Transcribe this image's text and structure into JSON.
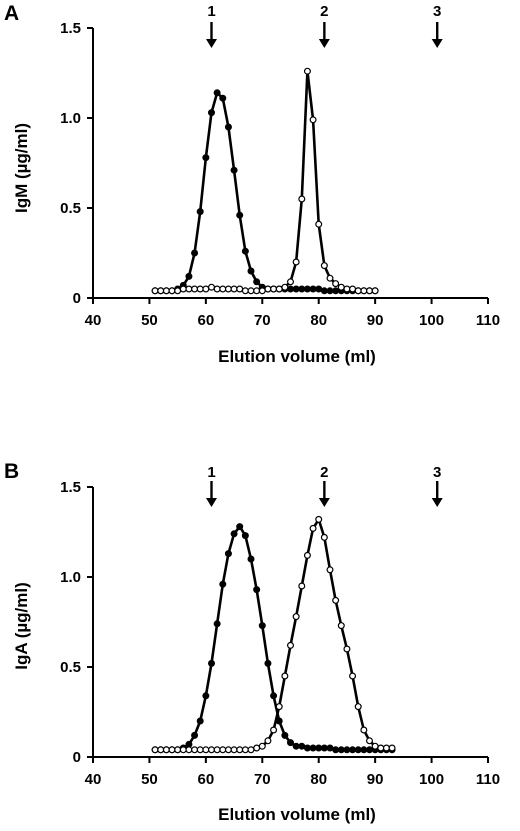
{
  "chart_data": [
    {
      "panel": "A",
      "type": "line",
      "xlabel": "Elution volume  (ml)",
      "ylabel": "IgM (µg/ml)",
      "xlim": [
        40,
        110
      ],
      "ylim": [
        0,
        1.5
      ],
      "xticks": [
        "40",
        "50",
        "60",
        "70",
        "80",
        "90",
        "100",
        "110"
      ],
      "yticks": [
        "0",
        "0.5",
        "1.0",
        "1.5"
      ],
      "markers": [
        {
          "label": "1",
          "x": 61
        },
        {
          "label": "2",
          "x": 81
        },
        {
          "label": "3",
          "x": 101
        }
      ],
      "series": [
        {
          "marker": "filled-circle",
          "x": [
            51,
            52,
            53,
            54,
            55,
            56,
            57,
            58,
            59,
            60,
            61,
            62,
            63,
            64,
            65,
            66,
            67,
            68,
            69,
            70,
            71,
            72,
            73,
            74,
            75,
            76,
            77,
            78,
            79,
            80,
            81,
            82,
            83,
            84,
            85,
            86,
            87,
            88,
            89,
            90
          ],
          "values": [
            0.04,
            0.04,
            0.04,
            0.04,
            0.05,
            0.07,
            0.12,
            0.25,
            0.48,
            0.78,
            1.03,
            1.14,
            1.11,
            0.95,
            0.71,
            0.46,
            0.26,
            0.15,
            0.09,
            0.06,
            0.05,
            0.05,
            0.05,
            0.05,
            0.05,
            0.05,
            0.05,
            0.05,
            0.05,
            0.05,
            0.04,
            0.04,
            0.04,
            0.04,
            0.04,
            0.04,
            0.04,
            0.04,
            0.04,
            0.04
          ]
        },
        {
          "marker": "open-circle",
          "x": [
            51,
            52,
            53,
            54,
            55,
            56,
            57,
            58,
            59,
            60,
            61,
            62,
            63,
            64,
            65,
            66,
            67,
            68,
            69,
            70,
            71,
            72,
            73,
            74,
            75,
            76,
            77,
            78,
            79,
            80,
            81,
            82,
            83,
            84,
            85,
            86,
            87,
            88,
            89,
            90
          ],
          "values": [
            0.04,
            0.04,
            0.04,
            0.04,
            0.04,
            0.05,
            0.05,
            0.05,
            0.05,
            0.05,
            0.06,
            0.05,
            0.05,
            0.05,
            0.05,
            0.05,
            0.04,
            0.04,
            0.04,
            0.04,
            0.05,
            0.05,
            0.05,
            0.06,
            0.09,
            0.2,
            0.55,
            1.26,
            0.99,
            0.41,
            0.18,
            0.11,
            0.08,
            0.06,
            0.05,
            0.05,
            0.04,
            0.04,
            0.04,
            0.04
          ]
        }
      ]
    },
    {
      "panel": "B",
      "type": "line",
      "xlabel": "Elution volume (ml)",
      "ylabel": "IgA (µg/ml)",
      "xlim": [
        40,
        110
      ],
      "ylim": [
        0,
        1.5
      ],
      "xticks": [
        "40",
        "50",
        "60",
        "70",
        "80",
        "90",
        "100",
        "110"
      ],
      "yticks": [
        "0",
        "0.5",
        "1.0",
        "1.5"
      ],
      "markers": [
        {
          "label": "1",
          "x": 61
        },
        {
          "label": "2",
          "x": 81
        },
        {
          "label": "3",
          "x": 101
        }
      ],
      "series": [
        {
          "marker": "filled-circle",
          "x": [
            51,
            52,
            53,
            54,
            55,
            56,
            57,
            58,
            59,
            60,
            61,
            62,
            63,
            64,
            65,
            66,
            67,
            68,
            69,
            70,
            71,
            72,
            73,
            74,
            75,
            76,
            77,
            78,
            79,
            80,
            81,
            82,
            83,
            84,
            85,
            86,
            87,
            88,
            89,
            90,
            91,
            92,
            93
          ],
          "values": [
            0.04,
            0.04,
            0.04,
            0.04,
            0.04,
            0.05,
            0.07,
            0.12,
            0.2,
            0.34,
            0.52,
            0.74,
            0.96,
            1.13,
            1.24,
            1.28,
            1.23,
            1.1,
            0.93,
            0.73,
            0.52,
            0.34,
            0.2,
            0.12,
            0.08,
            0.06,
            0.06,
            0.05,
            0.05,
            0.05,
            0.05,
            0.05,
            0.04,
            0.04,
            0.04,
            0.04,
            0.04,
            0.04,
            0.04,
            0.04,
            0.04,
            0.04,
            0.04
          ]
        },
        {
          "marker": "open-circle",
          "x": [
            51,
            52,
            53,
            54,
            55,
            56,
            57,
            58,
            59,
            60,
            61,
            62,
            63,
            64,
            65,
            66,
            67,
            68,
            69,
            70,
            71,
            72,
            73,
            74,
            75,
            76,
            77,
            78,
            79,
            80,
            81,
            82,
            83,
            84,
            85,
            86,
            87,
            88,
            89,
            90,
            91,
            92,
            93
          ],
          "values": [
            0.04,
            0.04,
            0.04,
            0.04,
            0.04,
            0.04,
            0.04,
            0.04,
            0.04,
            0.04,
            0.04,
            0.04,
            0.04,
            0.04,
            0.04,
            0.04,
            0.04,
            0.04,
            0.05,
            0.06,
            0.09,
            0.15,
            0.28,
            0.45,
            0.62,
            0.78,
            0.95,
            1.12,
            1.27,
            1.32,
            1.22,
            1.04,
            0.87,
            0.73,
            0.6,
            0.45,
            0.28,
            0.15,
            0.09,
            0.06,
            0.05,
            0.05,
            0.05
          ]
        }
      ]
    }
  ]
}
